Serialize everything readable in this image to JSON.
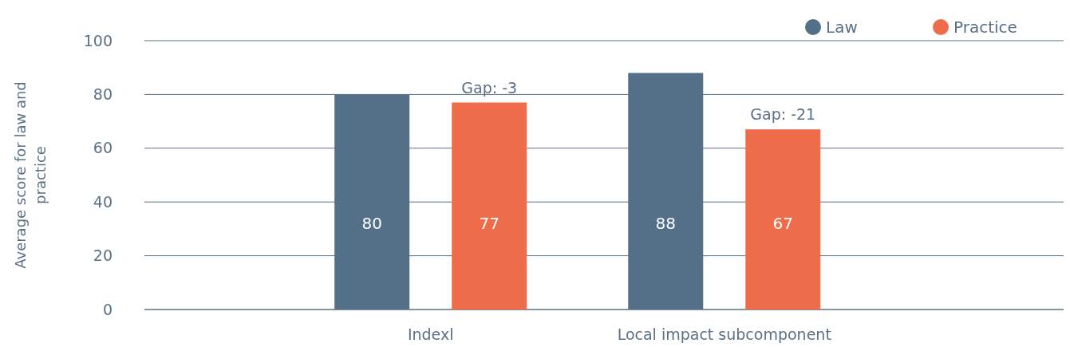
{
  "chart_data": {
    "type": "bar",
    "ylabel": "Average score for law and practice",
    "categories": [
      "Indexl",
      "Local impact subcomponent"
    ],
    "series": [
      {
        "name": "Law",
        "color": "#537088",
        "values": [
          80,
          88
        ]
      },
      {
        "name": "Practice",
        "color": "#ef6c4a",
        "values": [
          77,
          67
        ]
      }
    ],
    "ylim": [
      0,
      100
    ],
    "yticks": [
      0,
      20,
      40,
      60,
      80,
      100
    ],
    "grid": "y",
    "legend": "top right",
    "data_labels": true,
    "annotations": [
      "Gap: -3",
      "Gap: -21"
    ]
  }
}
